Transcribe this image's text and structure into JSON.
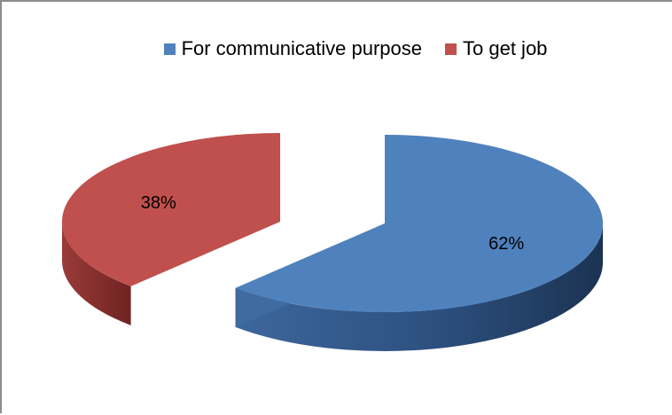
{
  "chart_data": {
    "type": "pie",
    "style": "3d-exploded",
    "title": "",
    "legend_position": "top",
    "slices": [
      {
        "name": "For communicative purpose",
        "value": 62,
        "label": "62%",
        "color": "#4f81bd",
        "side_color": "#2a4a75"
      },
      {
        "name": "To get job",
        "value": 38,
        "label": "38%",
        "color": "#c0504d",
        "side_color": "#7a2a28"
      }
    ]
  }
}
